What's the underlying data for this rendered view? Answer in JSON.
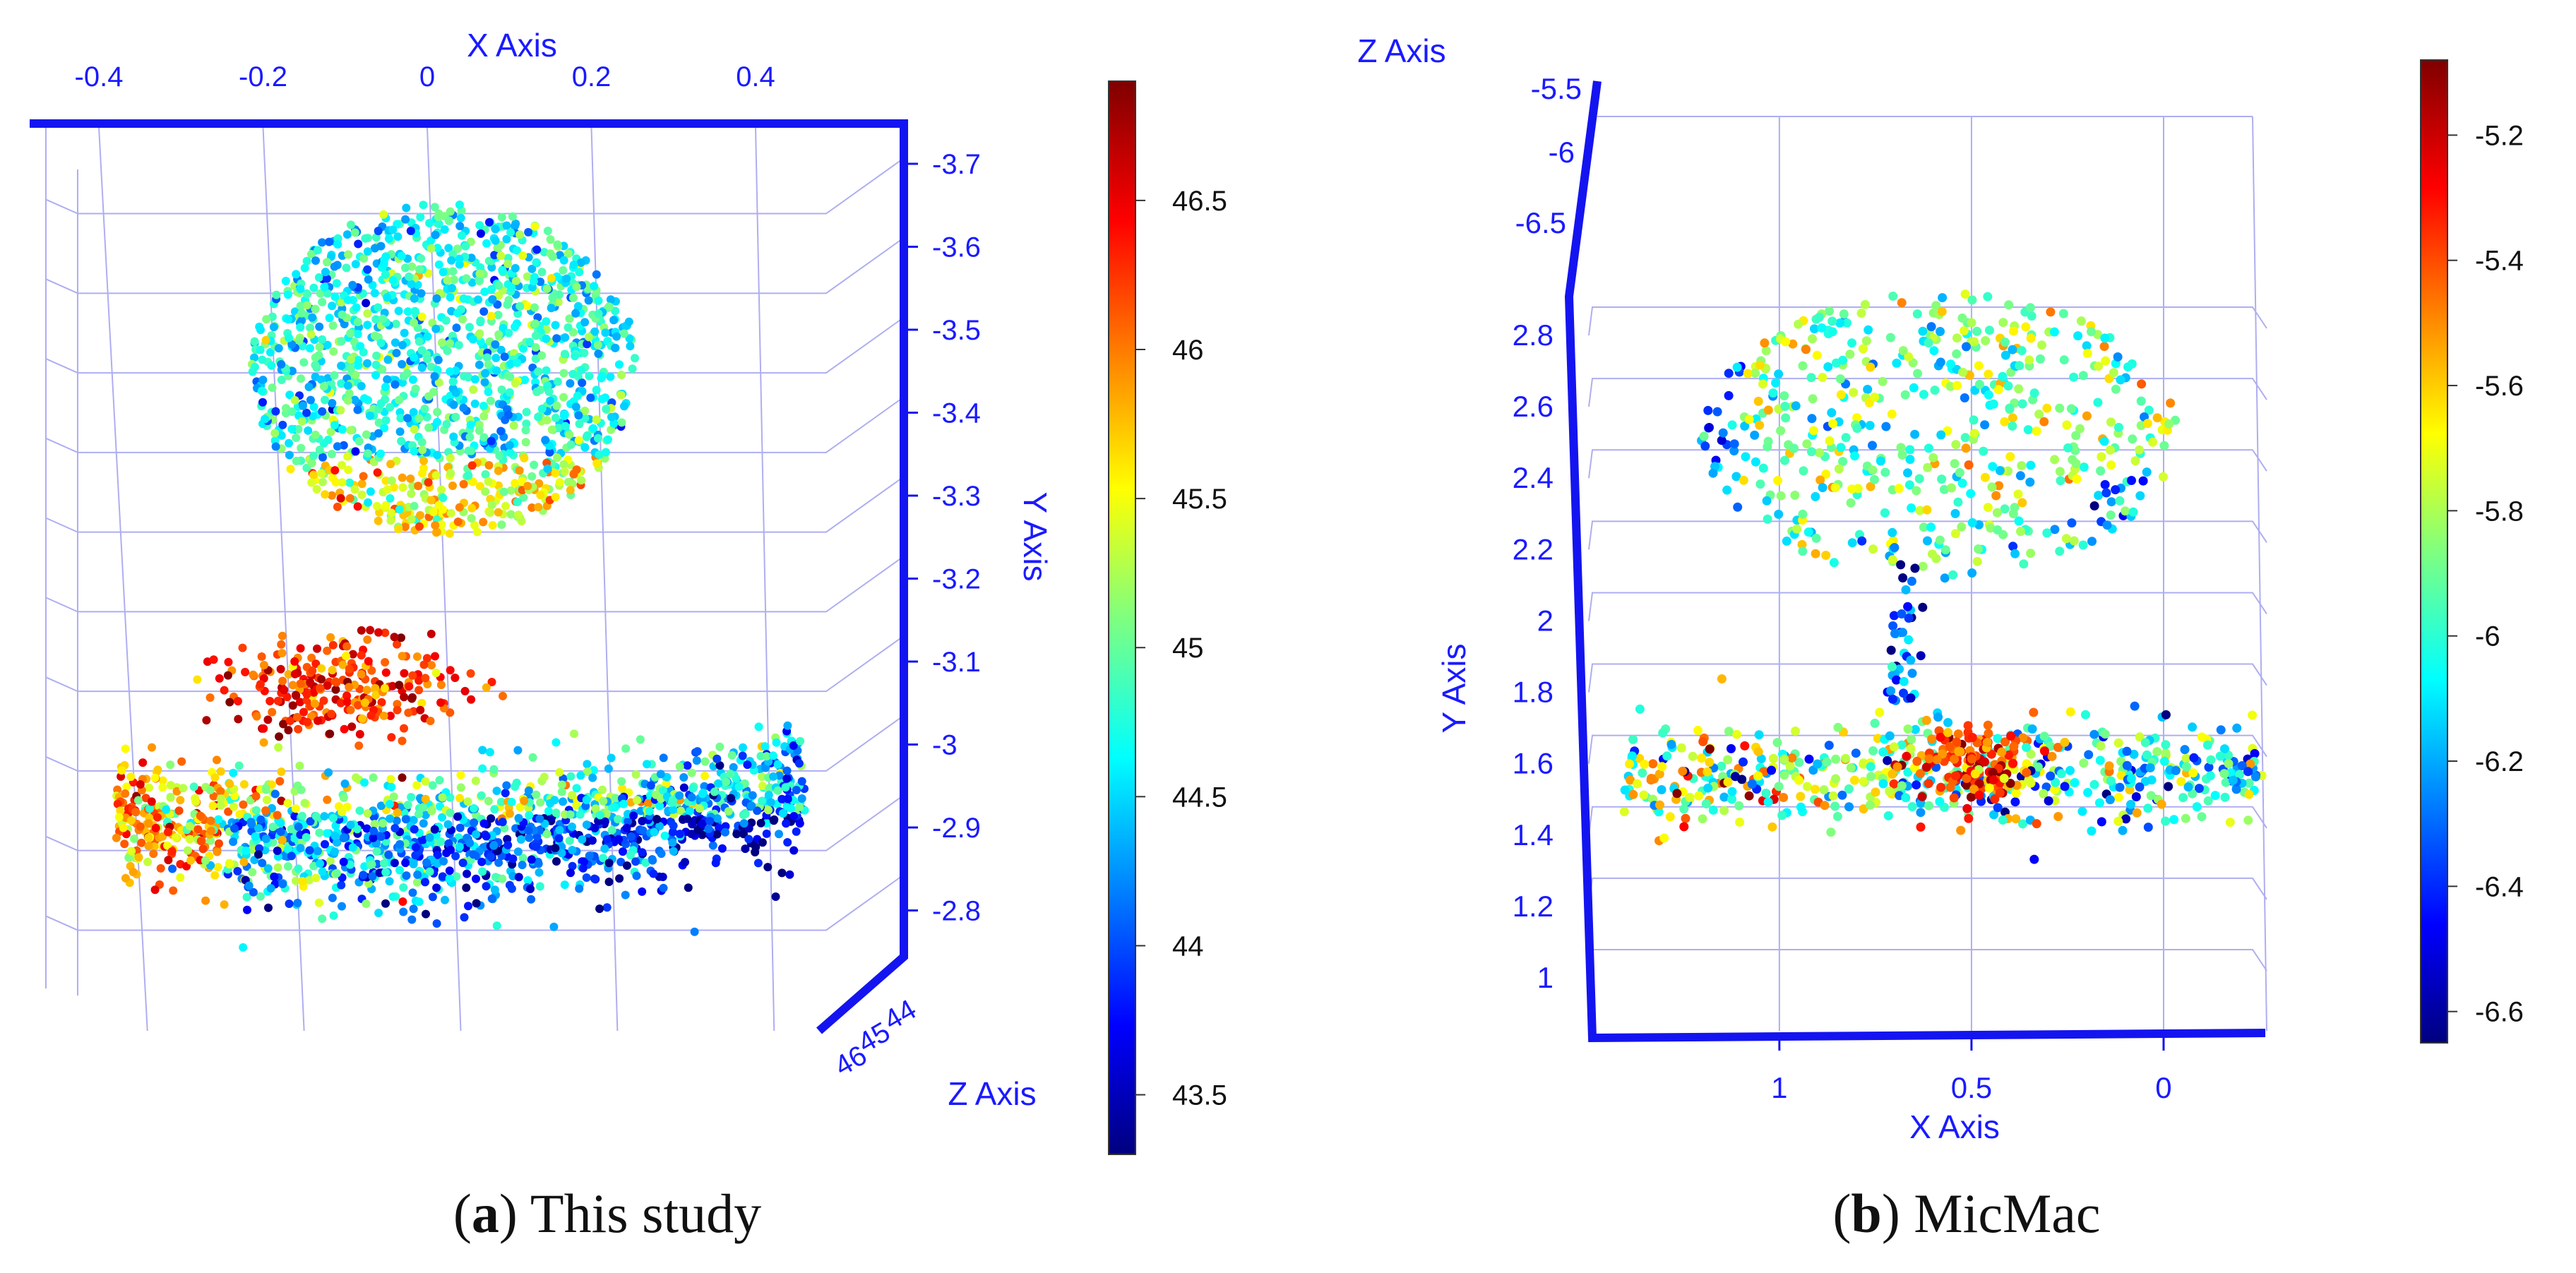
{
  "chart_data": [
    {
      "type": "scatter",
      "panel": "a",
      "caption_letter": "a",
      "caption_text": "This study",
      "x_axis": {
        "label": "X Axis",
        "ticks": [
          "-0.4",
          "-0.2",
          "0",
          "0.2",
          "0.4"
        ],
        "range": [
          -0.48,
          0.48
        ]
      },
      "y_axis": {
        "label": "Y Axis",
        "ticks": [
          "-3.7",
          "-3.6",
          "-3.5",
          "-3.4",
          "-3.3",
          "-3.2",
          "-3.1",
          "-3",
          "-2.9",
          "-2.8"
        ],
        "range": [
          -3.72,
          -2.78
        ]
      },
      "z_axis": {
        "label": "Z Axis",
        "ticks": [
          "44",
          "45",
          "46"
        ]
      },
      "colorbar": {
        "ticks": [
          "46.5",
          "46",
          "45.5",
          "45",
          "44.5",
          "44",
          "43.5"
        ],
        "range": [
          43.3,
          46.9
        ],
        "colormap": "jet"
      },
      "clusters": [
        {
          "name": "upper-blob",
          "x_center": -0.02,
          "y_center": -3.46,
          "x_spread": 0.19,
          "y_spread": 0.16,
          "value_mean": 44.7,
          "count": 1400
        },
        {
          "name": "lower-arc",
          "x_center": 0.0,
          "y_center": -2.92,
          "x_spread": 0.44,
          "y_spread": 0.08,
          "value_mean": 44.5,
          "count": 1500
        },
        {
          "name": "red-streak",
          "x_center": -0.16,
          "y_center": -3.06,
          "x_spread": 0.13,
          "y_spread": 0.03,
          "value_mean": 46.3,
          "count": 260
        }
      ]
    },
    {
      "type": "scatter",
      "panel": "b",
      "caption_letter": "b",
      "caption_text": "MicMac",
      "x_axis": {
        "label": "X Axis",
        "ticks": [
          "1",
          "0.5",
          "0"
        ],
        "range": [
          1.45,
          -0.25
        ]
      },
      "y_axis": {
        "label": "Y Axis",
        "ticks": [
          "2.8",
          "2.6",
          "2.4",
          "2.2",
          "2",
          "1.8",
          "1.6",
          "1.4",
          "1.2",
          "1"
        ],
        "range": [
          0.8,
          3.0
        ]
      },
      "z_axis": {
        "label": "Z Axis",
        "ticks": [
          "-5.5",
          "-6",
          "-6.5"
        ]
      },
      "colorbar": {
        "ticks": [
          "-5.2",
          "-5.4",
          "-5.6",
          "-5.8",
          "-6",
          "-6.2",
          "-6.4",
          "-6.6"
        ],
        "range": [
          -6.65,
          -5.08
        ],
        "colormap": "jet"
      },
      "clusters": [
        {
          "name": "tree-crown",
          "x_center": 0.58,
          "y_center": 2.52,
          "x_spread": 0.5,
          "y_spread": 0.32,
          "value_mean": -5.9,
          "count": 520
        },
        {
          "name": "trunk",
          "x_center": 0.68,
          "y_center": 1.95,
          "x_spread": 0.06,
          "y_spread": 0.15,
          "value_mean": -6.3,
          "count": 40
        },
        {
          "name": "ground-band",
          "x_center": 0.58,
          "y_center": 1.57,
          "x_spread": 0.7,
          "y_spread": 0.07,
          "value_mean": -5.95,
          "count": 560
        },
        {
          "name": "red-core",
          "x_center": 0.5,
          "y_center": 1.6,
          "x_spread": 0.08,
          "y_spread": 0.05,
          "value_mean": -5.35,
          "count": 140
        }
      ]
    }
  ]
}
